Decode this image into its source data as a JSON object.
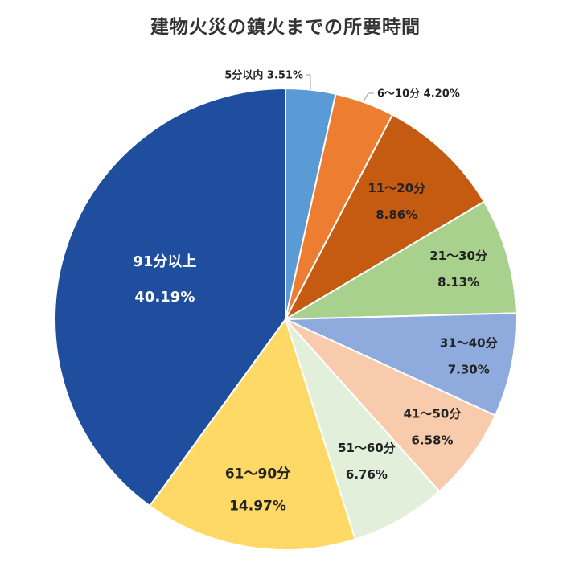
{
  "chart_data": {
    "type": "pie",
    "title": "建物火災の鎮火までの所要時間",
    "categories": [
      "5分以内",
      "6～10分",
      "11～20分",
      "21～30分",
      "31～40分",
      "41～50分",
      "51～60分",
      "61～90分",
      "91分以上"
    ],
    "values": [
      3.51,
      4.2,
      8.86,
      8.13,
      7.3,
      6.58,
      6.76,
      14.97,
      40.19
    ],
    "value_labels": [
      "3.51%",
      "4.20%",
      "8.86%",
      "8.13%",
      "7.30%",
      "6.58%",
      "6.76%",
      "14.97%",
      "40.19%"
    ],
    "colors": [
      "#5b9bd5",
      "#ed7d31",
      "#c55a11",
      "#a9d18e",
      "#8faadc",
      "#f8cbad",
      "#e2efda",
      "#ffd966",
      "#1f4e9e"
    ],
    "label_colors": [
      "#222222",
      "#222222",
      "#222222",
      "#222222",
      "#222222",
      "#222222",
      "#222222",
      "#222222",
      "#ffffff"
    ],
    "start_angle_deg": 0,
    "direction": "clockwise",
    "legend": "none"
  }
}
